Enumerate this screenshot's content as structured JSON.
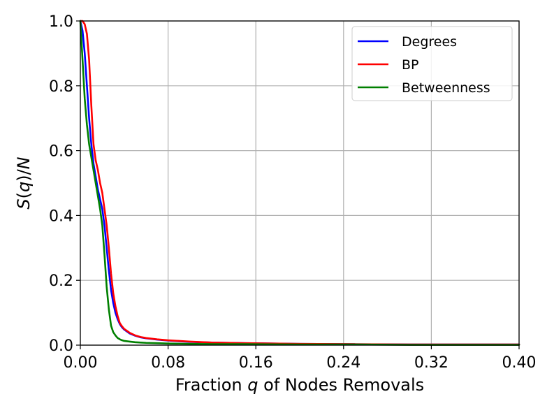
{
  "chart_data": {
    "type": "line",
    "title": "",
    "xlabel_parts": [
      "Fraction ",
      "q",
      " of Nodes Removals"
    ],
    "ylabel_parts": [
      "S",
      "(",
      "q",
      ")/",
      "N"
    ],
    "xlim": [
      0.0,
      0.4
    ],
    "ylim": [
      0.0,
      1.0
    ],
    "xticks": [
      0.0,
      0.08,
      0.16,
      0.24,
      0.32,
      0.4
    ],
    "xtick_labels": [
      "0.00",
      "0.08",
      "0.16",
      "0.24",
      "0.32",
      "0.40"
    ],
    "yticks": [
      0.0,
      0.2,
      0.4,
      0.6,
      0.8,
      1.0
    ],
    "ytick_labels": [
      "0.0",
      "0.2",
      "0.4",
      "0.6",
      "0.8",
      "1.0"
    ],
    "grid": true,
    "legend_position": "top-right",
    "series": [
      {
        "name": "Degrees",
        "color": "#0000ff",
        "x": [
          0.0,
          0.002,
          0.004,
          0.006,
          0.008,
          0.01,
          0.012,
          0.014,
          0.016,
          0.018,
          0.02,
          0.022,
          0.024,
          0.026,
          0.028,
          0.03,
          0.032,
          0.034,
          0.036,
          0.038,
          0.04,
          0.045,
          0.05,
          0.055,
          0.06,
          0.07,
          0.08,
          0.1,
          0.12,
          0.15,
          0.2,
          0.25,
          0.3,
          0.35,
          0.4
        ],
        "y": [
          1.0,
          0.97,
          0.9,
          0.8,
          0.7,
          0.62,
          0.56,
          0.52,
          0.48,
          0.45,
          0.42,
          0.37,
          0.3,
          0.23,
          0.17,
          0.13,
          0.1,
          0.08,
          0.065,
          0.055,
          0.048,
          0.036,
          0.029,
          0.024,
          0.021,
          0.017,
          0.014,
          0.01,
          0.008,
          0.006,
          0.004,
          0.003,
          0.002,
          0.002,
          0.002
        ]
      },
      {
        "name": "BP",
        "color": "#ff0000",
        "x": [
          0.0,
          0.002,
          0.004,
          0.006,
          0.008,
          0.01,
          0.012,
          0.014,
          0.016,
          0.018,
          0.02,
          0.022,
          0.024,
          0.026,
          0.028,
          0.03,
          0.032,
          0.034,
          0.036,
          0.038,
          0.04,
          0.045,
          0.05,
          0.055,
          0.06,
          0.07,
          0.08,
          0.1,
          0.12,
          0.15,
          0.2,
          0.25,
          0.3,
          0.35,
          0.4
        ],
        "y": [
          1.0,
          1.0,
          0.99,
          0.96,
          0.88,
          0.74,
          0.62,
          0.57,
          0.54,
          0.5,
          0.47,
          0.42,
          0.37,
          0.3,
          0.22,
          0.16,
          0.12,
          0.09,
          0.068,
          0.058,
          0.05,
          0.038,
          0.03,
          0.025,
          0.022,
          0.018,
          0.015,
          0.011,
          0.008,
          0.006,
          0.004,
          0.003,
          0.002,
          0.002,
          0.002
        ]
      },
      {
        "name": "Betweenness",
        "color": "#008000",
        "x": [
          0.0,
          0.002,
          0.004,
          0.006,
          0.008,
          0.01,
          0.012,
          0.014,
          0.016,
          0.018,
          0.02,
          0.022,
          0.024,
          0.026,
          0.028,
          0.03,
          0.032,
          0.034,
          0.036,
          0.038,
          0.04,
          0.045,
          0.05,
          0.055,
          0.06,
          0.07,
          0.08,
          0.1,
          0.12,
          0.15,
          0.2,
          0.25,
          0.3,
          0.35,
          0.4
        ],
        "y": [
          1.0,
          0.88,
          0.76,
          0.68,
          0.62,
          0.58,
          0.54,
          0.5,
          0.46,
          0.42,
          0.37,
          0.28,
          0.18,
          0.11,
          0.06,
          0.04,
          0.03,
          0.022,
          0.018,
          0.015,
          0.013,
          0.011,
          0.009,
          0.008,
          0.007,
          0.006,
          0.005,
          0.004,
          0.003,
          0.003,
          0.002,
          0.002,
          0.001,
          0.001,
          0.001
        ]
      }
    ]
  }
}
